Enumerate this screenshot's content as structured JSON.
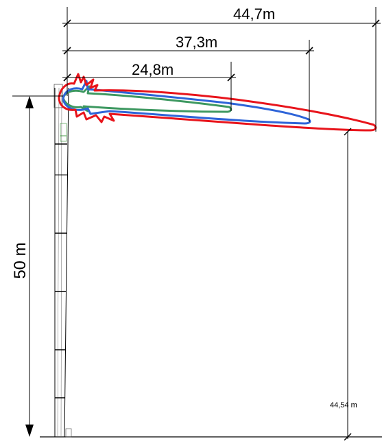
{
  "dimensions": {
    "width_1": "44,7m",
    "width_2": "37,3m",
    "width_3": "24,8m",
    "height_total": "50 m",
    "height_tip": "44,54 m"
  },
  "colors": {
    "outer_plume": "#e8141b",
    "middle_plume": "#2e64d8",
    "inner_plume": "#3d9860",
    "structure": "#000000"
  }
}
